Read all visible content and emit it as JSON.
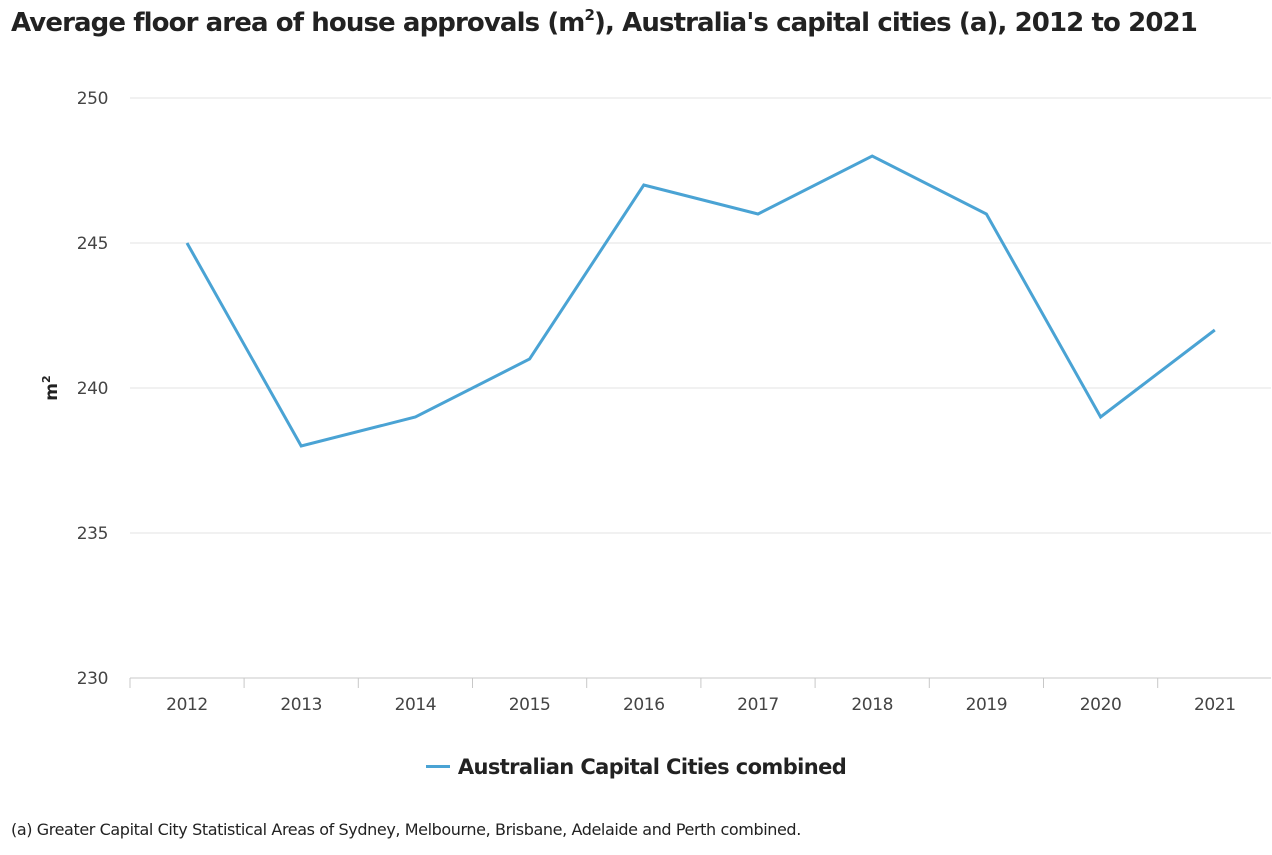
{
  "title": {
    "prefix": "Average floor area of house approvals (m",
    "superscript": "2",
    "suffix": "), Australia's capital cities (a), 2012 to 2021"
  },
  "footnote": "(a) Greater Capital City Statistical Areas of Sydney, Melbourne, Brisbane, Adelaide and Perth combined.",
  "colors": {
    "series": "#4aa3d4",
    "grid": "#e3e3e3",
    "axis": "#c8c8c8"
  },
  "chart_data": {
    "type": "line",
    "title": "Average floor area of house approvals (m2), Australia's capital cities (a), 2012 to 2021",
    "xlabel": "",
    "ylabel": "m2",
    "ylabel_base": "m",
    "ylabel_superscript": "2",
    "ylim": [
      230,
      250
    ],
    "yticks": [
      230,
      235,
      240,
      245,
      250
    ],
    "grid": true,
    "legend_position": "bottom-center",
    "categories": [
      "2012",
      "2013",
      "2014",
      "2015",
      "2016",
      "2017",
      "2018",
      "2019",
      "2020",
      "2021"
    ],
    "series": [
      {
        "name": "Australian Capital Cities combined",
        "values": [
          245,
          238,
          239,
          241,
          247,
          246,
          248,
          246,
          239,
          242
        ]
      }
    ]
  }
}
